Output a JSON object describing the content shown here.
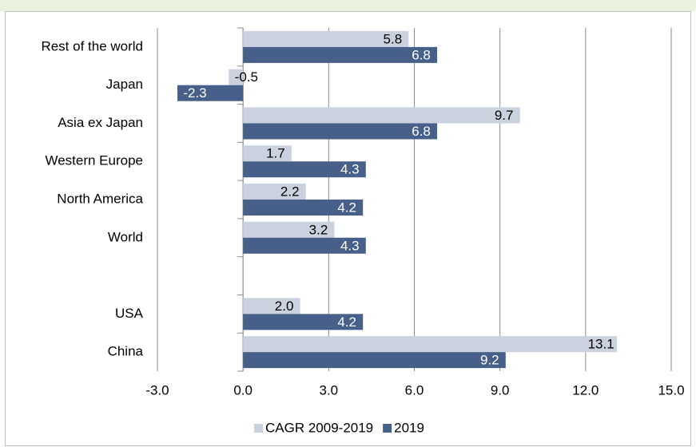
{
  "chart_data": {
    "type": "barh",
    "categories": [
      "Rest of the world",
      "Japan",
      "Asia ex Japan",
      "Western Europe",
      "North America",
      "World",
      null,
      "USA",
      "China"
    ],
    "series": [
      {
        "name": "CAGR 2009-2019",
        "color": "#c9d2de",
        "label_color": "#000000",
        "values": [
          5.8,
          -0.5,
          9.7,
          1.7,
          2.2,
          3.2,
          null,
          2.0,
          13.1
        ],
        "value_labels": [
          "5.8",
          "-0.5",
          "9.7",
          "1.7",
          "2.2",
          "3.2",
          null,
          "2.0",
          "13.1"
        ]
      },
      {
        "name": "2019",
        "color": "#47608a",
        "label_color": "#ffffff",
        "values": [
          6.8,
          -2.3,
          6.8,
          4.3,
          4.2,
          4.3,
          null,
          4.2,
          9.2
        ],
        "value_labels": [
          "6.8",
          "-2.3",
          "6.8",
          "4.3",
          "4.2",
          "4.3",
          null,
          "4.2",
          "9.2"
        ]
      }
    ],
    "xlim": [
      -3,
      15
    ],
    "xticks": [
      {
        "value": -3,
        "label": "-3.0"
      },
      {
        "value": 0,
        "label": "0.0"
      },
      {
        "value": 3,
        "label": "3.0"
      },
      {
        "value": 6,
        "label": "6.0"
      },
      {
        "value": 9,
        "label": "9.0"
      },
      {
        "value": 12,
        "label": "12.0"
      },
      {
        "value": 15,
        "label": "15.0"
      }
    ],
    "grid": true,
    "legend": "bottom"
  }
}
